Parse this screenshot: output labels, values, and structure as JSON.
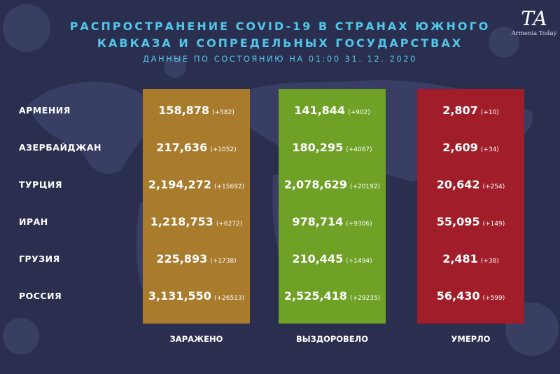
{
  "header": {
    "title_line1": "РАСПРОСТРАНЕНИЕ COVID-19 В СТРАНАХ ЮЖНОГО",
    "title_line2": "КАВКАЗА И СОПРЕДЕЛЬНЫХ ГОСУДАРСТВАХ",
    "subtitle": "ДАННЫЕ ПО СОСТОЯНИЮ НА 01:00  31. 12. 2020"
  },
  "logo": {
    "mark": "TA",
    "text": "Armenia Today"
  },
  "colors": {
    "background": "#2b2f4f",
    "title": "#52c6e8",
    "infected": "#a87b2d",
    "recovered": "#6ea126",
    "died": "#a11d2a"
  },
  "chart_data": {
    "type": "table",
    "columns": [
      "ЗАРАЖЕНО",
      "ВЫЗДОРОВЕЛО",
      "УМЕРЛО"
    ],
    "rows": [
      {
        "country": "АРМЕНИЯ",
        "infected": "158,878",
        "infected_delta": "(+582)",
        "recovered": "141,844",
        "recovered_delta": "(+902)",
        "died": "2,807",
        "died_delta": "(+10)"
      },
      {
        "country": "АЗЕРБАЙДЖАН",
        "infected": "217,636",
        "infected_delta": "(+1052)",
        "recovered": "180,295",
        "recovered_delta": "(+4067)",
        "died": "2,609",
        "died_delta": "(+34)"
      },
      {
        "country": "ТУРЦИЯ",
        "infected": "2,194,272",
        "infected_delta": "(+15692)",
        "recovered": "2,078,629",
        "recovered_delta": "(+20192)",
        "died": "20,642",
        "died_delta": "(+254)"
      },
      {
        "country": "ИРАН",
        "infected": "1,218,753",
        "infected_delta": "(+6272)",
        "recovered": "978,714",
        "recovered_delta": "(+9306)",
        "died": "55,095",
        "died_delta": "(+149)"
      },
      {
        "country": "ГРУЗИЯ",
        "infected": "225,893",
        "infected_delta": "(+1738)",
        "recovered": "210,445",
        "recovered_delta": "(+1494)",
        "died": "2,481",
        "died_delta": "(+38)"
      },
      {
        "country": "РОССИЯ",
        "infected": "3,131,550",
        "infected_delta": "(+26513)",
        "recovered": "2,525,418",
        "recovered_delta": "(+29235)",
        "died": "56,430",
        "died_delta": "(+599)"
      }
    ]
  }
}
